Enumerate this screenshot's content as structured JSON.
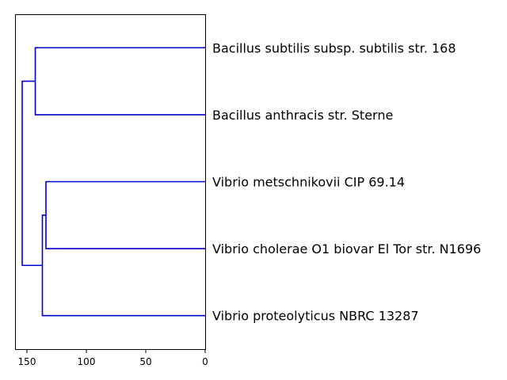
{
  "chart_data": {
    "type": "dendrogram",
    "orientation": "left",
    "title": "",
    "xlabel": "",
    "ylabel": "",
    "xlim": [
      0,
      160
    ],
    "xticks": [
      {
        "value": 150,
        "label": "150"
      },
      {
        "value": 100,
        "label": "100"
      },
      {
        "value": 50,
        "label": "50"
      },
      {
        "value": 0,
        "label": "0"
      }
    ],
    "leaves": [
      "Bacillus subtilis subsp. subtilis str. 168",
      "Bacillus anthracis str. Sterne",
      "Vibrio metschnikovii CIP 69.14",
      "Vibrio cholerae O1 biovar El Tor str. N1696",
      "Vibrio proteolyticus NBRC 13287"
    ],
    "merges": [
      {
        "id": "m1",
        "left": 0,
        "right": 1,
        "height": 143
      },
      {
        "id": "m2",
        "left": 2,
        "right": 3,
        "height": 134
      },
      {
        "id": "m3",
        "left": 4,
        "right": "m2",
        "height": 137
      },
      {
        "id": "m4",
        "left": "m1",
        "right": "m3",
        "height": 154
      }
    ],
    "link_color": "#0000cc"
  }
}
